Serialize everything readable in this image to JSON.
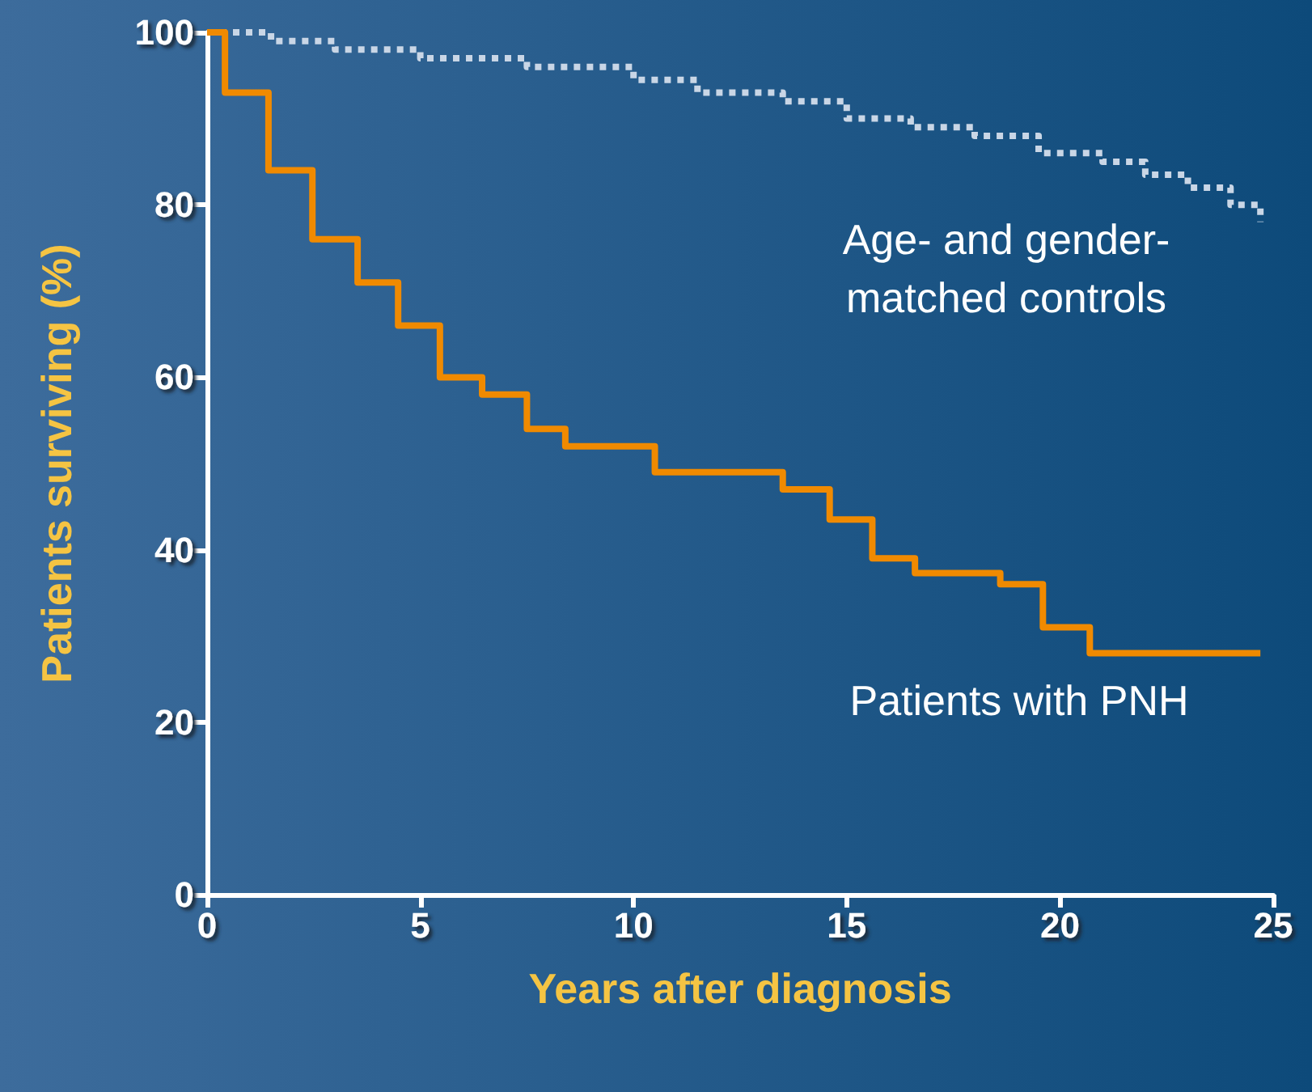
{
  "chart_data": {
    "type": "step",
    "xlabel": "Years after diagnosis",
    "ylabel": "Patients surviving (%)",
    "xlim": [
      0,
      25
    ],
    "xticks": [
      0,
      5,
      10,
      15,
      20,
      25
    ],
    "ylim": [
      0,
      100
    ],
    "yticks": [
      0,
      20,
      40,
      60,
      80,
      100
    ],
    "grid": false,
    "marker": "none",
    "series": [
      {
        "color": "#c9d6e6",
        "line_style": "dotted",
        "x": [
          0,
          1.5,
          3,
          5,
          7.5,
          10,
          11.5,
          13.5,
          15,
          16.5,
          18,
          19.5,
          21,
          22,
          23,
          24,
          24.7
        ],
        "values": [
          100,
          99,
          98,
          97,
          96,
          94.5,
          93,
          92,
          90,
          89,
          88,
          86,
          85,
          83.5,
          82,
          80,
          78
        ]
      },
      {
        "color": "#f08a00",
        "line_style": "solid",
        "x": [
          0,
          0.42,
          1.44,
          2.47,
          3.53,
          4.48,
          5.46,
          6.45,
          7.5,
          8.4,
          10.5,
          13.5,
          14.6,
          15.6,
          16.6,
          18.6,
          19.6,
          20.7,
          24.7
        ],
        "values": [
          100,
          93,
          84,
          76,
          71,
          66,
          60,
          58,
          54,
          52,
          49,
          47,
          43.5,
          39,
          37.3,
          36,
          31,
          28,
          28
        ]
      }
    ],
    "annotations": [
      "Age- and gender-\nmatched controls",
      "Patients with PNH"
    ]
  }
}
